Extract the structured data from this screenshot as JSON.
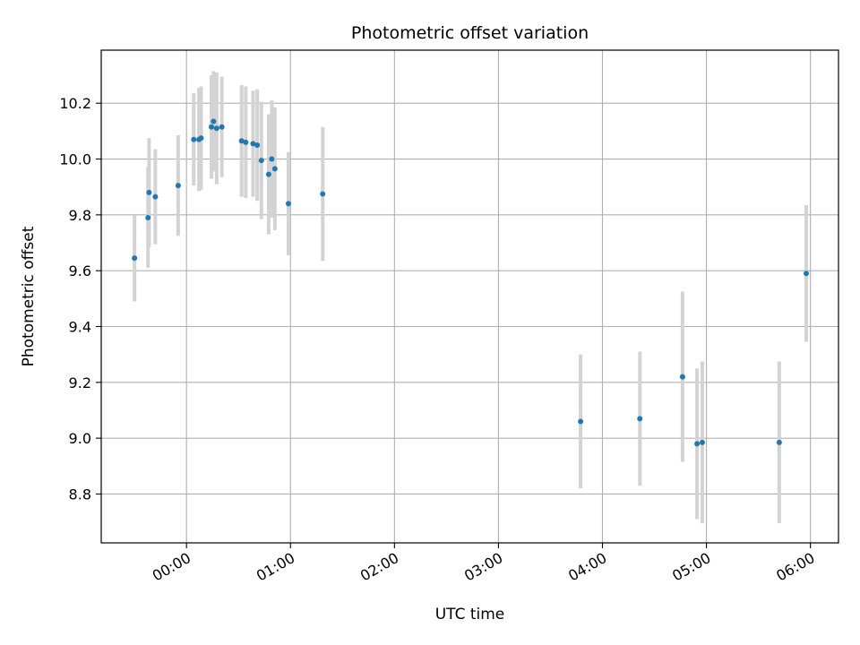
{
  "chart_data": {
    "type": "scatter",
    "title": "Photometric offset variation",
    "xlabel": "UTC time",
    "ylabel": "Photometric offset",
    "x_unit": "hours (UTC)",
    "xlim": [
      -0.82,
      6.27
    ],
    "ylim": [
      8.625,
      10.39
    ],
    "x_ticks": [
      {
        "value": 0,
        "label": "00:00"
      },
      {
        "value": 1,
        "label": "01:00"
      },
      {
        "value": 2,
        "label": "02:00"
      },
      {
        "value": 3,
        "label": "03:00"
      },
      {
        "value": 4,
        "label": "04:00"
      },
      {
        "value": 5,
        "label": "05:00"
      },
      {
        "value": 6,
        "label": "06:00"
      }
    ],
    "y_ticks": [
      8.8,
      9.0,
      9.2,
      9.4,
      9.6,
      9.8,
      10.0,
      10.2
    ],
    "y_tick_labels": [
      "8.8",
      "9.0",
      "9.2",
      "9.4",
      "9.6",
      "9.8",
      "10.0",
      "10.2"
    ],
    "grid": true,
    "marker_color": "#1f77b4",
    "errorbar_color": "#d3d3d3",
    "series": [
      {
        "points": [
          {
            "x": -0.5,
            "y": 9.645,
            "err": 0.155
          },
          {
            "x": -0.37,
            "y": 9.79,
            "err": 0.18
          },
          {
            "x": -0.36,
            "y": 9.88,
            "err": 0.195
          },
          {
            "x": -0.3,
            "y": 9.865,
            "err": 0.17
          },
          {
            "x": -0.08,
            "y": 9.905,
            "err": 0.18
          },
          {
            "x": 0.07,
            "y": 10.07,
            "err": 0.165
          },
          {
            "x": 0.12,
            "y": 10.07,
            "err": 0.185
          },
          {
            "x": 0.14,
            "y": 10.075,
            "err": 0.185
          },
          {
            "x": 0.24,
            "y": 10.115,
            "err": 0.185
          },
          {
            "x": 0.26,
            "y": 10.135,
            "err": 0.18
          },
          {
            "x": 0.29,
            "y": 10.11,
            "err": 0.2
          },
          {
            "x": 0.34,
            "y": 10.115,
            "err": 0.18
          },
          {
            "x": 0.53,
            "y": 10.065,
            "err": 0.2
          },
          {
            "x": 0.57,
            "y": 10.06,
            "err": 0.2
          },
          {
            "x": 0.64,
            "y": 10.055,
            "err": 0.19
          },
          {
            "x": 0.68,
            "y": 10.05,
            "err": 0.2
          },
          {
            "x": 0.72,
            "y": 9.995,
            "err": 0.21
          },
          {
            "x": 0.79,
            "y": 9.945,
            "err": 0.215
          },
          {
            "x": 0.82,
            "y": 10.0,
            "err": 0.21
          },
          {
            "x": 0.85,
            "y": 9.965,
            "err": 0.22
          },
          {
            "x": 0.98,
            "y": 9.84,
            "err": 0.185
          },
          {
            "x": 1.31,
            "y": 9.875,
            "err": 0.24
          },
          {
            "x": 3.79,
            "y": 9.06,
            "err": 0.24
          },
          {
            "x": 4.36,
            "y": 9.07,
            "err": 0.24
          },
          {
            "x": 4.77,
            "y": 9.22,
            "err": 0.305
          },
          {
            "x": 4.91,
            "y": 8.98,
            "err": 0.27
          },
          {
            "x": 4.96,
            "y": 8.985,
            "err": 0.29
          },
          {
            "x": 5.7,
            "y": 8.985,
            "err": 0.29
          },
          {
            "x": 5.96,
            "y": 9.59,
            "err": 0.245
          }
        ]
      }
    ]
  }
}
